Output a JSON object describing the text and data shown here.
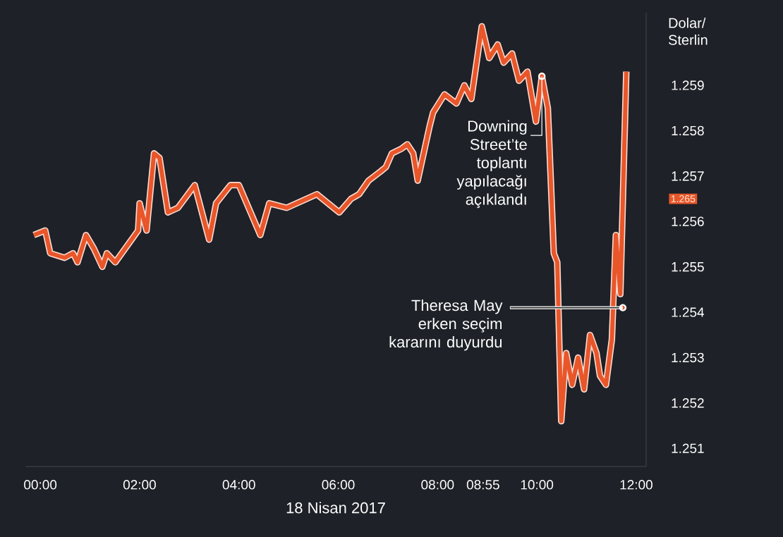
{
  "chart_data": {
    "type": "line",
    "xlabel": "18 Nisan 2017",
    "ylabel": "Dolar/ Sterlin",
    "x": [
      -0.13,
      0.1,
      0.2,
      0.49,
      0.66,
      0.75,
      0.92,
      1.08,
      1.25,
      1.34,
      1.51,
      1.97,
      2.0,
      2.14,
      2.29,
      2.4,
      2.57,
      2.77,
      3.11,
      3.4,
      3.54,
      3.83,
      4.0,
      4.43,
      4.61,
      4.96,
      5.57,
      6.02,
      6.26,
      6.42,
      6.61,
      6.73,
      6.85,
      6.96,
      7.08,
      7.27,
      7.39,
      7.51,
      7.6,
      7.72,
      7.84,
      7.91,
      8.14,
      8.38,
      8.54,
      8.68,
      8.89,
      9.04,
      9.21,
      9.33,
      9.5,
      9.64,
      9.81,
      9.98,
      10.1,
      10.22,
      10.34,
      10.41,
      10.49,
      10.59,
      10.71,
      10.83,
      10.95,
      11.07,
      11.2,
      11.27,
      11.39,
      11.51,
      11.59,
      11.68,
      11.8
    ],
    "series": [
      {
        "color": "#e8562a",
        "values": [
          1.2557,
          1.2558,
          1.2553,
          1.2552,
          1.2553,
          1.2551,
          1.2557,
          1.2554,
          1.255,
          1.2553,
          1.2551,
          1.2558,
          1.2564,
          1.2558,
          1.2575,
          1.2574,
          1.2562,
          1.2563,
          1.2568,
          1.2556,
          1.2564,
          1.2568,
          1.2568,
          1.2557,
          1.2564,
          1.2563,
          1.2566,
          1.2562,
          1.2565,
          1.2566,
          1.2569,
          1.257,
          1.2571,
          1.2572,
          1.2575,
          1.2576,
          1.2577,
          1.2575,
          1.2569,
          1.2575,
          1.2581,
          1.2584,
          1.2588,
          1.2586,
          1.259,
          1.2587,
          1.2603,
          1.2596,
          1.2599,
          1.2595,
          1.2597,
          1.2591,
          1.2593,
          1.2582,
          1.2592,
          1.2585,
          1.2553,
          1.2551,
          1.2516,
          1.2531,
          1.2524,
          1.253,
          1.2523,
          1.2535,
          1.2531,
          1.2526,
          1.2524,
          1.2534,
          1.2557,
          1.2544,
          1.2593
        ]
      }
    ],
    "xlim": [
      -0.3,
      12.2
    ],
    "ylim": [
      1.2506,
      1.2606
    ],
    "xticks": [
      {
        "value": 0,
        "label": "00:00"
      },
      {
        "value": 2,
        "label": "02:00"
      },
      {
        "value": 4,
        "label": "04:00"
      },
      {
        "value": 6,
        "label": "06:00"
      },
      {
        "value": 8,
        "label": "08:00"
      },
      {
        "value": 8.9167,
        "label": "08:55"
      },
      {
        "value": 10,
        "label": "10:00"
      },
      {
        "value": 12,
        "label": "12:00"
      }
    ],
    "yticks": [
      1.251,
      1.252,
      1.253,
      1.254,
      1.255,
      1.256,
      1.257,
      1.258,
      1.259
    ],
    "annotations": [
      {
        "text": "Downing Street’te toplantı yapılacağı açıklandı",
        "x": 10.1,
        "y": 1.2592
      },
      {
        "text": "Theresa May erken seçim kararını duyurdu",
        "x": 11.73,
        "y": 1.2541
      },
      "1.265"
    ]
  }
}
